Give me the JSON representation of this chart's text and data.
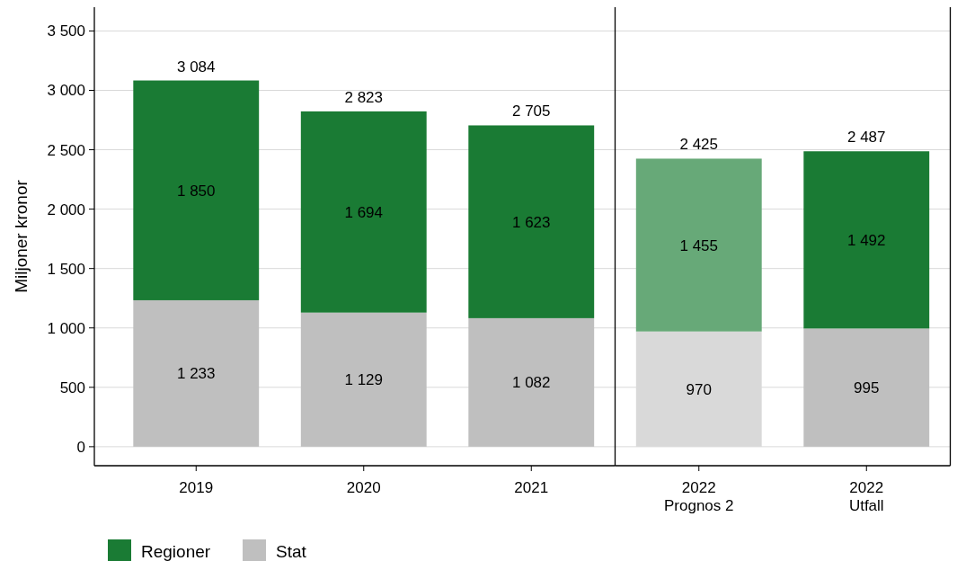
{
  "chart_data": [
    {
      "type": "bar",
      "stacked": true,
      "ylabel": "Miljoner kronor",
      "categories": [
        "2019",
        "2020",
        "2021"
      ],
      "series": [
        {
          "name": "Stat",
          "colors": [
            "#bfbfbf",
            "#bfbfbf",
            "#bfbfbf"
          ],
          "values": [
            1233,
            1129,
            1082
          ],
          "value_labels": [
            "1 233",
            "1 129",
            "1 082"
          ]
        },
        {
          "name": "Regioner",
          "colors": [
            "#1a7b34",
            "#1a7b34",
            "#1a7b34"
          ],
          "values": [
            1850,
            1694,
            1623
          ],
          "value_labels": [
            "1 850",
            "1 694",
            "1 623"
          ]
        }
      ],
      "totals": [
        "3 084",
        "2 823",
        "2 705"
      ],
      "ylim": [
        -160,
        3700
      ],
      "yticks": [
        0,
        500,
        {
          "value": 1000,
          "label": "1 000"
        },
        {
          "value": 1500,
          "label": "1 500"
        },
        {
          "value": 2000,
          "label": "2 000"
        },
        {
          "value": 2500,
          "label": "2 500"
        },
        {
          "value": 3000,
          "label": "3 000"
        },
        {
          "value": 3500,
          "label": "3 500"
        }
      ],
      "grid": "y",
      "legend": "bottom left"
    },
    {
      "type": "bar",
      "stacked": true,
      "categories": [
        "2022\nPrognos 2",
        "2022\nUtfall"
      ],
      "series": [
        {
          "colors": [
            "#d9d9d9",
            "#bfbfbf"
          ],
          "values": [
            970,
            995
          ],
          "value_labels": [
            "970",
            "995"
          ]
        },
        {
          "colors": [
            "#67a978",
            "#1a7b34"
          ],
          "values": [
            1455,
            1492
          ],
          "value_labels": [
            "1 455",
            "1 492"
          ]
        }
      ],
      "totals": [
        "2 425",
        "2 487"
      ],
      "ylim": [
        -160,
        3700
      ],
      "yticks": [
        0,
        500,
        1000,
        1500,
        2000,
        2500,
        3000,
        3500
      ],
      "tick_labels": "x",
      "grid": "y"
    }
  ]
}
